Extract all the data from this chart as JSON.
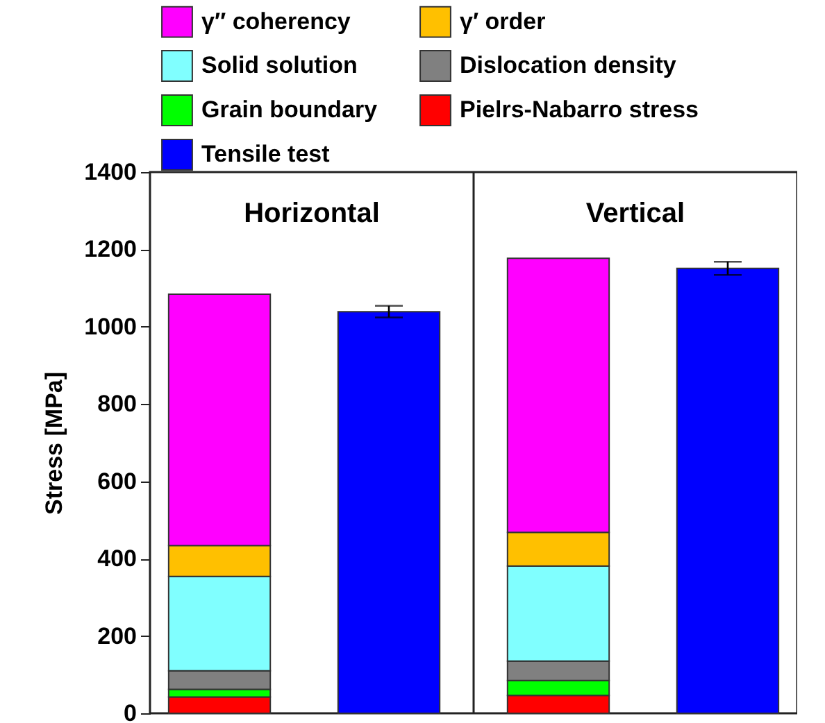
{
  "chart_data": {
    "type": "bar",
    "ylabel": "Stress [MPa]",
    "categories": [
      null,
      null,
      null,
      null
    ],
    "stacked": true,
    "legend": "top",
    "ylim": [
      0,
      1400
    ],
    "yticks": [
      0,
      200,
      400,
      600,
      800,
      1000,
      1200,
      1400
    ],
    "annotations": [
      "Horizontal",
      "Vertical"
    ],
    "series": [
      {
        "name": "Pielrs-Nabarro stress",
        "color": "#ff0000",
        "values": [
          42,
          null,
          46,
          null
        ]
      },
      {
        "name": "Grain boundary",
        "color": "#00ff00",
        "values": [
          20,
          null,
          39,
          null
        ]
      },
      {
        "name": "Dislocation density",
        "color": "#808080",
        "values": [
          48,
          null,
          50,
          null
        ]
      },
      {
        "name": "Solid solution",
        "color": "#80ffff",
        "values": [
          244,
          null,
          246,
          null
        ]
      },
      {
        "name": "γ′ order",
        "color": "#ffc000",
        "values": [
          80,
          null,
          87,
          null
        ]
      },
      {
        "name": "γ″ coherency",
        "color": "#ff00ff",
        "values": [
          650,
          null,
          709,
          null
        ]
      },
      {
        "name": "Tensile test",
        "color": "#0000ff",
        "values": [
          null,
          1039,
          null,
          1151
        ],
        "errors": [
          null,
          15,
          null,
          17
        ]
      }
    ]
  }
}
